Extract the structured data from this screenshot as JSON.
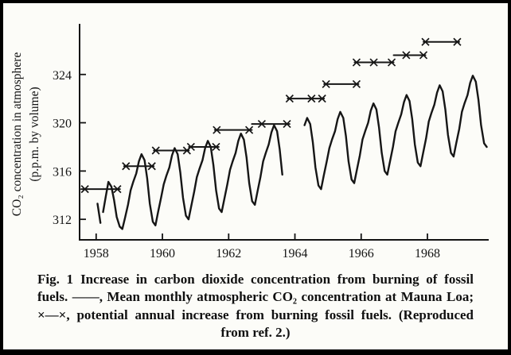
{
  "caption": {
    "fig_label": "Fig. 1",
    "part1": "Increase in carbon dioxide concentration from burning of fossil fuels.",
    "line_symbol": "——",
    "part2": ", Mean monthly atmospheric CO₂ concentration at Mauna Loa;",
    "x_symbol": "×—×",
    "part3": ", potential annual increase from burning fossil fuels.",
    "part4": "(Reproduced from ref. 2.)"
  },
  "chart_data": {
    "type": "line",
    "ylabel_line1": "CO₂ concentration in atmosphere",
    "ylabel_line2": "(p.p.m. by volume)",
    "xlim": [
      1957.5,
      1969.85
    ],
    "ylim": [
      310.3,
      327.8
    ],
    "xticks": [
      1958,
      1960,
      1962,
      1964,
      1966,
      1968
    ],
    "yticks": [
      312,
      316,
      320,
      324
    ],
    "grid": false,
    "legend_position": "in-caption",
    "series": [
      {
        "name": "Mean monthly atmospheric CO₂ concentration at Mauna Loa",
        "style": "solid-line",
        "segments": [
          [
            [
              1958.04,
              313.3
            ],
            [
              1958.13,
              311.7
            ]
          ],
          [
            [
              1958.21,
              312.6
            ],
            [
              1958.29,
              313.9
            ],
            [
              1958.37,
              315.1
            ],
            [
              1958.46,
              314.7
            ],
            [
              1958.54,
              313.6
            ],
            [
              1958.62,
              312.2
            ],
            [
              1958.71,
              311.4
            ],
            [
              1958.79,
              311.2
            ],
            [
              1958.87,
              312.1
            ],
            [
              1958.96,
              313.2
            ],
            [
              1959.04,
              314.4
            ],
            [
              1959.12,
              315.1
            ],
            [
              1959.21,
              315.8
            ],
            [
              1959.29,
              316.8
            ],
            [
              1959.37,
              317.4
            ],
            [
              1959.46,
              316.9
            ],
            [
              1959.54,
              315.4
            ],
            [
              1959.62,
              313.3
            ],
            [
              1959.71,
              311.8
            ],
            [
              1959.79,
              311.5
            ],
            [
              1959.87,
              312.6
            ],
            [
              1959.96,
              313.8
            ],
            [
              1960.04,
              314.9
            ],
            [
              1960.12,
              315.6
            ],
            [
              1960.21,
              316.3
            ],
            [
              1960.29,
              317.3
            ],
            [
              1960.37,
              317.9
            ],
            [
              1960.46,
              317.4
            ],
            [
              1960.54,
              315.9
            ],
            [
              1960.62,
              313.8
            ],
            [
              1960.71,
              312.3
            ],
            [
              1960.79,
              312.0
            ],
            [
              1960.87,
              313.1
            ],
            [
              1960.96,
              314.3
            ],
            [
              1961.04,
              315.5
            ],
            [
              1961.12,
              316.2
            ],
            [
              1961.21,
              316.9
            ],
            [
              1961.29,
              317.9
            ],
            [
              1961.37,
              318.5
            ],
            [
              1961.46,
              318.0
            ],
            [
              1961.54,
              316.5
            ],
            [
              1961.62,
              314.4
            ],
            [
              1961.71,
              312.9
            ],
            [
              1961.79,
              312.6
            ],
            [
              1961.87,
              313.7
            ],
            [
              1961.96,
              314.9
            ],
            [
              1962.04,
              316.1
            ],
            [
              1962.12,
              316.8
            ],
            [
              1962.21,
              317.5
            ],
            [
              1962.29,
              318.5
            ],
            [
              1962.37,
              319.1
            ],
            [
              1962.46,
              318.6
            ],
            [
              1962.54,
              317.1
            ],
            [
              1962.62,
              315.0
            ],
            [
              1962.71,
              313.5
            ],
            [
              1962.79,
              313.2
            ],
            [
              1962.87,
              314.3
            ],
            [
              1962.96,
              315.5
            ],
            [
              1963.04,
              316.8
            ],
            [
              1963.12,
              317.5
            ],
            [
              1963.21,
              318.2
            ],
            [
              1963.29,
              319.2
            ],
            [
              1963.37,
              319.8
            ],
            [
              1963.46,
              319.3
            ],
            [
              1963.54,
              317.8
            ],
            [
              1963.62,
              315.7
            ]
          ],
          [
            [
              1964.29,
              319.8
            ],
            [
              1964.37,
              320.4
            ],
            [
              1964.46,
              319.9
            ],
            [
              1964.54,
              318.4
            ],
            [
              1964.62,
              316.3
            ],
            [
              1964.71,
              314.8
            ],
            [
              1964.79,
              314.5
            ],
            [
              1964.87,
              315.6
            ],
            [
              1964.96,
              316.8
            ],
            [
              1965.04,
              317.9
            ],
            [
              1965.12,
              318.6
            ],
            [
              1965.21,
              319.3
            ],
            [
              1965.29,
              320.3
            ],
            [
              1965.37,
              320.9
            ],
            [
              1965.46,
              320.4
            ],
            [
              1965.54,
              318.9
            ],
            [
              1965.62,
              316.8
            ],
            [
              1965.71,
              315.3
            ],
            [
              1965.79,
              315.0
            ],
            [
              1965.87,
              316.1
            ],
            [
              1965.96,
              317.3
            ],
            [
              1966.04,
              318.6
            ],
            [
              1966.12,
              319.3
            ],
            [
              1966.21,
              320.0
            ],
            [
              1966.29,
              321.0
            ],
            [
              1966.37,
              321.6
            ],
            [
              1966.46,
              321.1
            ],
            [
              1966.54,
              319.6
            ],
            [
              1966.62,
              317.5
            ],
            [
              1966.71,
              316.0
            ],
            [
              1966.79,
              315.7
            ],
            [
              1966.87,
              316.8
            ],
            [
              1966.96,
              318.0
            ],
            [
              1967.04,
              319.3
            ],
            [
              1967.12,
              320.0
            ],
            [
              1967.21,
              320.7
            ],
            [
              1967.29,
              321.7
            ],
            [
              1967.37,
              322.3
            ],
            [
              1967.46,
              321.8
            ],
            [
              1967.54,
              320.3
            ],
            [
              1967.62,
              318.2
            ],
            [
              1967.71,
              316.7
            ],
            [
              1967.79,
              316.4
            ],
            [
              1967.87,
              317.5
            ],
            [
              1967.96,
              318.7
            ],
            [
              1968.04,
              320.1
            ],
            [
              1968.12,
              320.8
            ],
            [
              1968.21,
              321.5
            ],
            [
              1968.29,
              322.5
            ],
            [
              1968.37,
              323.1
            ],
            [
              1968.46,
              322.6
            ],
            [
              1968.54,
              321.1
            ],
            [
              1968.62,
              319.0
            ],
            [
              1968.71,
              317.5
            ],
            [
              1968.79,
              317.2
            ],
            [
              1968.87,
              318.3
            ],
            [
              1968.96,
              319.5
            ],
            [
              1969.04,
              320.9
            ],
            [
              1969.12,
              321.6
            ],
            [
              1969.21,
              322.3
            ],
            [
              1969.29,
              323.3
            ],
            [
              1969.37,
              323.9
            ],
            [
              1969.46,
              323.4
            ],
            [
              1969.54,
              321.9
            ],
            [
              1969.62,
              319.8
            ],
            [
              1969.71,
              318.3
            ],
            [
              1969.79,
              318.0
            ]
          ]
        ]
      },
      {
        "name": "Potential annual increase from burning fossil fuels",
        "style": "stepped-segments-x-markers",
        "segments": [
          {
            "x1": 1957.55,
            "x2": 1958.72,
            "y": 314.5,
            "marks": [
              1957.66,
              1958.64
            ]
          },
          {
            "x1": 1958.84,
            "x2": 1959.74,
            "y": 316.4,
            "marks": [
              1958.9,
              1959.68
            ]
          },
          {
            "x1": 1959.74,
            "x2": 1960.8,
            "y": 317.7,
            "marks": [
              1959.8,
              1960.74
            ]
          },
          {
            "x1": 1960.8,
            "x2": 1961.7,
            "y": 318.0,
            "marks": [
              1960.86,
              1961.62
            ]
          },
          {
            "x1": 1961.58,
            "x2": 1962.7,
            "y": 319.4,
            "marks": [
              1961.64,
              1962.62
            ]
          },
          {
            "x1": 1962.7,
            "x2": 1963.84,
            "y": 319.9,
            "marks": [
              1963.0,
              1963.76
            ]
          },
          {
            "x1": 1963.78,
            "x2": 1964.88,
            "y": 322.0,
            "marks": [
              1963.84,
              1964.5,
              1964.82
            ]
          },
          {
            "x1": 1964.88,
            "x2": 1965.92,
            "y": 323.2,
            "marks": [
              1964.94,
              1965.86
            ]
          },
          {
            "x1": 1965.8,
            "x2": 1966.98,
            "y": 325.0,
            "marks": [
              1965.86,
              1966.38,
              1966.92
            ]
          },
          {
            "x1": 1966.98,
            "x2": 1967.94,
            "y": 325.6,
            "marks": [
              1967.36,
              1967.88
            ]
          },
          {
            "x1": 1967.88,
            "x2": 1968.96,
            "y": 326.7,
            "marks": [
              1967.94,
              1968.9
            ]
          }
        ]
      }
    ]
  }
}
